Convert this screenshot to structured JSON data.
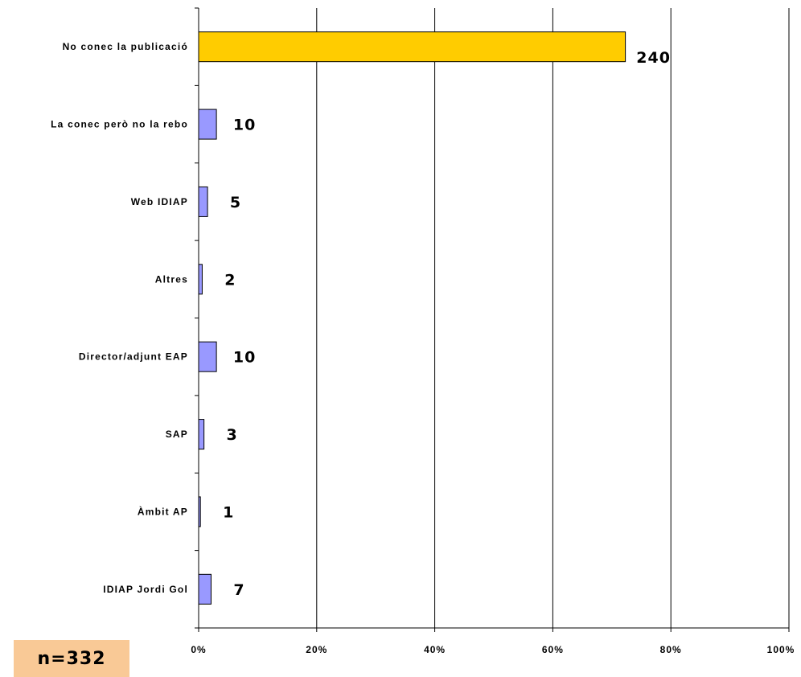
{
  "chart_data": {
    "type": "bar",
    "orientation": "horizontal",
    "categories": [
      "No conec la publicació",
      "La conec però no la rebo",
      "Web IDIAP",
      "Altres",
      "Director/adjunt EAP",
      "SAP",
      "Àmbit AP",
      "IDIAP Jordi Gol"
    ],
    "values": [
      240,
      10,
      5,
      2,
      10,
      3,
      1,
      7
    ],
    "data_labels": [
      "240",
      "10",
      "5",
      "2",
      "10",
      "3",
      "1",
      "7"
    ],
    "total": 332,
    "highlight_index": 0,
    "xaxis": {
      "ticks": [
        0,
        20,
        40,
        60,
        80,
        100
      ],
      "tick_labels": [
        "0%",
        "20%",
        "40%",
        "60%",
        "80%",
        "100%"
      ],
      "xlim": [
        0,
        100
      ]
    },
    "grid": {
      "vertical": true
    },
    "colors": {
      "highlight": "#ffcc00",
      "bar": "#9999ff",
      "n_box": "#f9c996"
    },
    "title": "",
    "xlabel": "",
    "ylabel": ""
  },
  "n_label": "n=332"
}
